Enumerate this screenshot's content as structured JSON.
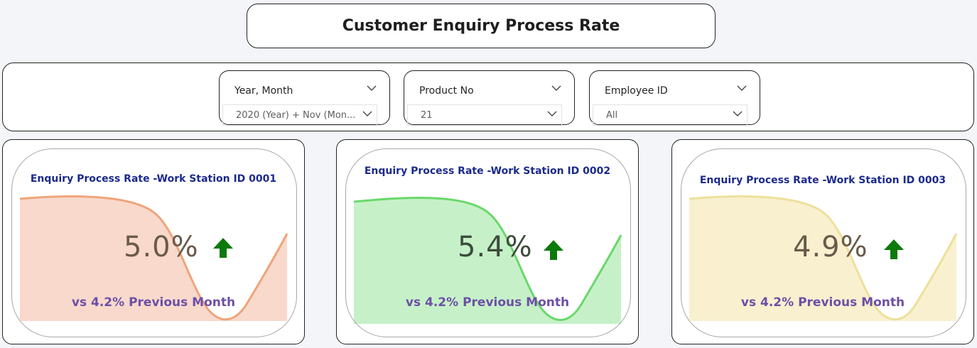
{
  "header": {
    "title": "Customer Enquiry Process Rate"
  },
  "filters": [
    {
      "label": "Year, Month",
      "value": "2020 (Year) + Nov (Mon..."
    },
    {
      "label": "Product No",
      "value": "21"
    },
    {
      "label": "Employee ID",
      "value": "All"
    }
  ],
  "cards": [
    {
      "title": "Enquiry Process Rate -Work Station ID 0001",
      "value": "5.0%",
      "comparison": "vs 4.2% Previous Month",
      "trend": "up",
      "fill_color": "#f8d9cc",
      "line_color": "#efa47a"
    },
    {
      "title": "Enquiry Process Rate -Work Station ID 0002",
      "value": "5.4%",
      "comparison": "vs 4.2% Previous Month",
      "trend": "up",
      "fill_color": "#c6f1c8",
      "line_color": "#6ad86a"
    },
    {
      "title": "Enquiry Process Rate -Work Station ID 0003",
      "value": "4.9%",
      "comparison": "vs 4.2% Previous Month",
      "trend": "up",
      "fill_color": "#f8f0cf",
      "line_color": "#ede09a"
    }
  ],
  "colors": {
    "arrow": "#0b7a0b",
    "title_text": "#1b2a8c",
    "comparison_text": "#6d4fa6"
  },
  "icons": {
    "dropdown": "chevron-down-icon",
    "trend": "arrow-up-icon"
  }
}
